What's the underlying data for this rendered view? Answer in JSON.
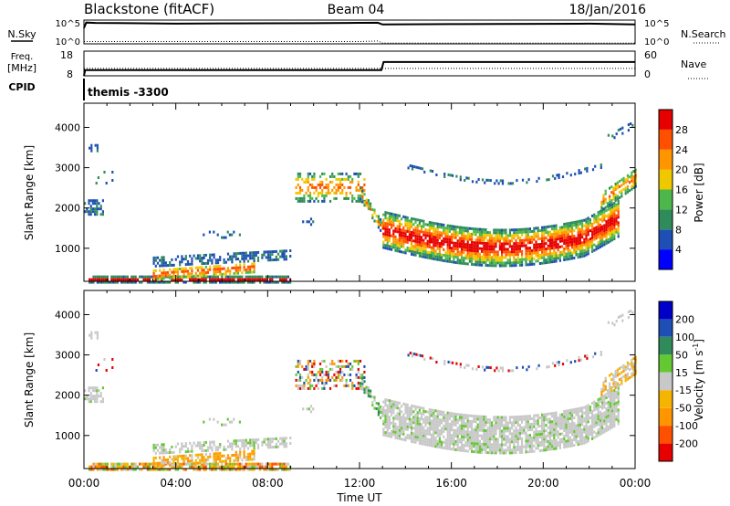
{
  "header": {
    "station": "Blackstone (fitACF)",
    "beam": "Beam 04",
    "date": "18/Jan/2016",
    "cpid_label": "CPID",
    "cpid_value": "themis -3300"
  },
  "noise_panel": {
    "left_label": "N.Sky",
    "right_label": "N.Search",
    "left_ticks": [
      "10^5",
      "10^0"
    ],
    "right_ticks": [
      "10^5",
      "10^0"
    ]
  },
  "freq_panel": {
    "left_label_top": "Freq.",
    "left_label_unit": "[MHz]",
    "right_label": "Nave",
    "left_ticks": [
      "18",
      "8"
    ],
    "right_ticks": [
      "60",
      "0"
    ]
  },
  "colors": {
    "power_scale": [
      "#0000ff",
      "#1e4fb4",
      "#2f8c5a",
      "#4cb84c",
      "#f0c800",
      "#ff9600",
      "#ff5000",
      "#e60000"
    ],
    "velocity_scale": [
      "#e60000",
      "#ff5000",
      "#ff9600",
      "#f5b400",
      "#c8c8c8",
      "#64c832",
      "#2f8c5a",
      "#1e4fb4",
      "#0000c8"
    ],
    "ground_scatter": "#c8c8c8"
  },
  "chart_data": [
    {
      "type": "line",
      "title": "",
      "ylabel": "N.Sky",
      "y_scale": "log",
      "ylim": [
        1,
        100000
      ],
      "series": [
        {
          "name": "N.Sky",
          "x": [
            0,
            0.1,
            0.5,
            2,
            4,
            6,
            8,
            10,
            12,
            12.8,
            13,
            14,
            16,
            18,
            20,
            22,
            24
          ],
          "y": [
            2000,
            30000,
            25000,
            22000,
            18000,
            20000,
            21000,
            22000,
            26000,
            28000,
            12000,
            13000,
            14000,
            15000,
            16000,
            18000,
            12000
          ]
        },
        {
          "name": "N.Search",
          "x": [
            0,
            2,
            4,
            6,
            8,
            10,
            12,
            12.8,
            13,
            16,
            20,
            24
          ],
          "y": [
            3,
            3,
            3,
            3,
            3,
            3,
            3,
            4,
            1.5,
            1.5,
            1.5,
            1.5
          ]
        }
      ]
    },
    {
      "type": "line",
      "ylabel": "Freq. [MHz]",
      "ylim": [
        8,
        18
      ],
      "y2label": "Nave",
      "y2lim": [
        0,
        60
      ],
      "series": [
        {
          "name": "Freq.",
          "x": [
            0,
            0.05,
            12.95,
            13.05,
            24
          ],
          "y": [
            8,
            10.3,
            10.3,
            13.6,
            13.6
          ]
        },
        {
          "name": "Nave",
          "x": [
            0,
            12.95,
            13.05,
            24
          ],
          "y": [
            18,
            18,
            18,
            18
          ]
        }
      ]
    },
    {
      "type": "heatmap",
      "xlabel": "",
      "ylabel": "Slant Range [km]",
      "xlim": [
        0,
        24
      ],
      "ylim": [
        180,
        4600
      ],
      "yticks": [
        1000,
        2000,
        3000,
        4000
      ],
      "colorbar": {
        "label": "Power [dB]",
        "range": [
          0,
          32
        ],
        "ticks": [
          4,
          8,
          12,
          16,
          20,
          24,
          28
        ]
      }
    },
    {
      "type": "heatmap",
      "xlabel": "Time UT",
      "ylabel": "Slant Range [km]",
      "xlim": [
        0,
        24
      ],
      "ylim": [
        180,
        4600
      ],
      "xtick_labels": [
        "00:00",
        "04:00",
        "08:00",
        "12:00",
        "16:00",
        "20:00",
        "00:00"
      ],
      "yticks": [
        1000,
        2000,
        3000,
        4000
      ],
      "colorbar": {
        "label": "Velocity [m s^-1]",
        "ticks": [
          200,
          100,
          50,
          15,
          -15,
          -50,
          -100,
          -200
        ]
      }
    }
  ]
}
